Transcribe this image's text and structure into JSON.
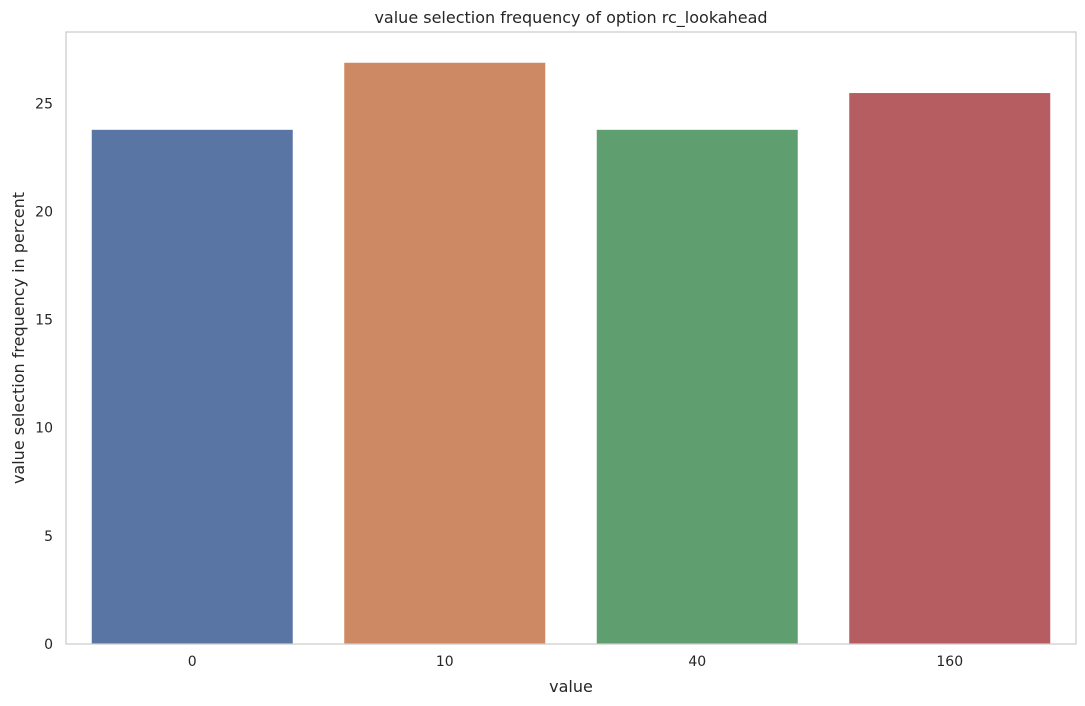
{
  "chart_data": {
    "type": "bar",
    "title": "value selection frequency of option rc_lookahead",
    "xlabel": "value",
    "ylabel": "value selection frequency in percent",
    "categories": [
      "0",
      "10",
      "40",
      "160"
    ],
    "values": [
      23.8,
      26.9,
      23.8,
      25.5
    ],
    "colors": [
      "#5875a4",
      "#cc8963",
      "#5f9e6e",
      "#b55d60"
    ],
    "ylim": [
      0,
      28.3
    ],
    "yticks": [
      0,
      5,
      10,
      15,
      20,
      25
    ],
    "grid": false,
    "legend": "none"
  }
}
